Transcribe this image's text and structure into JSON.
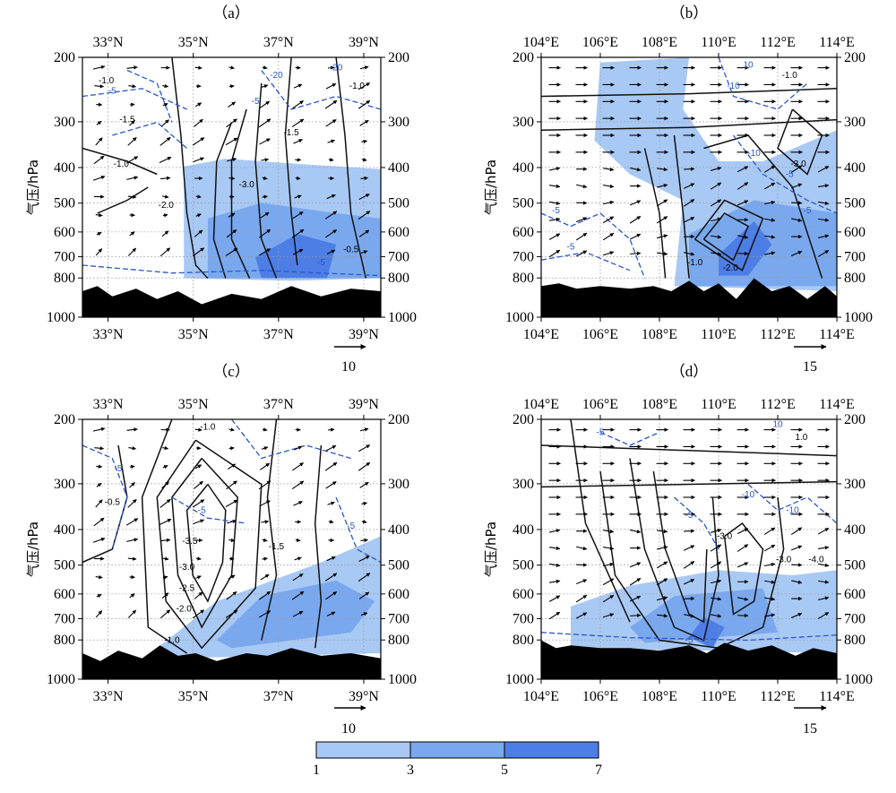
{
  "chart_data": [
    {
      "panel": "(a)",
      "type": "contour",
      "x_axis": {
        "ticks": [
          "33°N",
          "35°N",
          "37°N",
          "39°N"
        ],
        "tick_values": [
          33,
          35,
          37,
          39
        ],
        "range": [
          32.4,
          39.4
        ]
      },
      "y_axis": {
        "label": "气压/hPa",
        "ticks": [
          "200",
          "300",
          "400",
          "500",
          "600",
          "700",
          "800",
          "1000"
        ],
        "tick_values": [
          200,
          300,
          400,
          500,
          600,
          700,
          800,
          1000
        ],
        "range": [
          1000,
          200
        ]
      },
      "vector_reference": "10",
      "contour_labels": [
        "-1.0",
        "-1.5",
        "-1.0",
        "-2.0",
        "-3.0",
        "-1.5",
        "-0.5",
        "-1.0",
        "-5",
        "-5",
        "-20",
        "-20",
        "-5"
      ],
      "shading": [
        {
          "level": 1,
          "region": "35-39.4°N, 400-800 hPa"
        },
        {
          "level": 3,
          "region": "35.5-39.4°N, 500-800 hPa"
        },
        {
          "level": 5,
          "region": "36.5-38.5°N, 650-800 hPa"
        }
      ]
    },
    {
      "panel": "(b)",
      "type": "contour",
      "x_axis": {
        "ticks": [
          "104°E",
          "106°E",
          "108°E",
          "110°E",
          "112°E",
          "114°E"
        ],
        "tick_values": [
          104,
          106,
          108,
          110,
          112,
          114
        ],
        "range": [
          104,
          114
        ]
      },
      "y_axis": {
        "label": "气压/hPa",
        "ticks": [
          "200",
          "300",
          "400",
          "500",
          "600",
          "700",
          "800",
          "1000"
        ],
        "tick_values": [
          200,
          300,
          400,
          500,
          600,
          700,
          800,
          1000
        ],
        "range": [
          1000,
          200
        ]
      },
      "vector_reference": "15",
      "contour_labels": [
        "-1.0",
        "-3.0",
        "-2.0",
        "-1.0",
        "-5",
        "-5",
        "-10",
        "-10",
        "-5",
        "-5",
        "10"
      ],
      "shading": [
        {
          "level": 1,
          "region": "106-109°E, 200-400 hPa; 108-114°E, 500-800 hPa"
        },
        {
          "level": 3,
          "region": "109-113°E, 550-800 hPa"
        },
        {
          "level": 5,
          "region": "110-111°E, 600-700 hPa"
        }
      ]
    },
    {
      "panel": "(c)",
      "type": "contour",
      "x_axis": {
        "ticks": [
          "33°N",
          "35°N",
          "37°N",
          "39°N"
        ],
        "tick_values": [
          33,
          35,
          37,
          39
        ],
        "range": [
          32.4,
          39.4
        ]
      },
      "y_axis": {
        "label": "气压/hPa",
        "ticks": [
          "200",
          "300",
          "400",
          "500",
          "600",
          "700",
          "800",
          "1000"
        ],
        "tick_values": [
          200,
          300,
          400,
          500,
          600,
          700,
          800,
          1000
        ],
        "range": [
          1000,
          200
        ]
      },
      "vector_reference": "10",
      "contour_labels": [
        "-1.0",
        "-0.5",
        "-3.5",
        "-3.0",
        "-2.5",
        "-2.0",
        "-1.5",
        "-1.0",
        "-0.5",
        "-5",
        "-5",
        "-5"
      ],
      "shading": [
        {
          "level": 1,
          "region": "34-39.4°N, 500-800 hPa"
        },
        {
          "level": 3,
          "region": "35-39°N, 600-800 hPa"
        }
      ]
    },
    {
      "panel": "(d)",
      "type": "contour",
      "x_axis": {
        "ticks": [
          "104°E",
          "106°E",
          "108°E",
          "110°E",
          "112°E",
          "114°E"
        ],
        "tick_values": [
          104,
          106,
          108,
          110,
          112,
          114
        ],
        "range": [
          104,
          114
        ]
      },
      "y_axis": {
        "label": "气压/hPa",
        "ticks": [
          "200",
          "300",
          "400",
          "500",
          "600",
          "700",
          "800",
          "1000"
        ],
        "tick_values": [
          200,
          300,
          400,
          500,
          600,
          700,
          800,
          1000
        ],
        "range": [
          1000,
          200
        ]
      },
      "vector_reference": "15",
      "contour_labels": [
        "1.0",
        "-3.0",
        "-3.0",
        "-4.0",
        "-5",
        "-5",
        "-10",
        "-10",
        "10",
        "-5"
      ],
      "shading": [
        {
          "level": 1,
          "region": "105-114°E, 550-800 hPa"
        },
        {
          "level": 3,
          "region": "108-112°E, 600-800 hPa"
        },
        {
          "level": 5,
          "region": "109.5-110.5°E, 680-780 hPa"
        }
      ]
    }
  ],
  "colorbar": {
    "ticks": [
      "1",
      "3",
      "5",
      "7"
    ],
    "tick_values": [
      1,
      3,
      5,
      7
    ],
    "colors": [
      "#a9c9f5",
      "#7aa8ee",
      "#4d7ee6"
    ]
  },
  "panels": {
    "a": {
      "label": "（a）",
      "ref": "10"
    },
    "b": {
      "label": "（b）",
      "ref": "15"
    },
    "c": {
      "label": "（c）",
      "ref": "10"
    },
    "d": {
      "label": "（d）",
      "ref": "15"
    },
    "y_axis_label": "气压/hPa"
  }
}
